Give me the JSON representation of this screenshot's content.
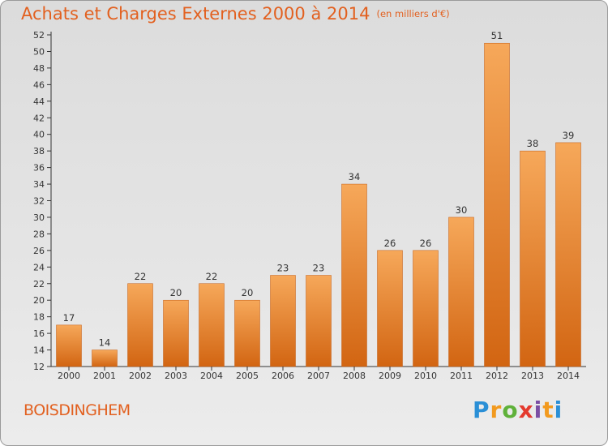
{
  "title": "Achats et Charges Externes 2000 à 2014",
  "subtitle": "(en milliers d'€)",
  "town": "BOISDINGHEM",
  "logo": {
    "letters": [
      "P",
      "r",
      "o",
      "x",
      "i",
      "t",
      "i"
    ],
    "colors": [
      "#2a8fd6",
      "#f29a1e",
      "#5fb13a",
      "#e43a2e",
      "#7b4ea3",
      "#f29a1e",
      "#2a8fd6"
    ]
  },
  "colors": {
    "bar_top": "#f6a85a",
    "bar_bottom": "#d26512",
    "title": "#e2601f"
  },
  "chart_data": {
    "type": "bar",
    "categories": [
      "2000",
      "2001",
      "2002",
      "2003",
      "2004",
      "2005",
      "2006",
      "2007",
      "2008",
      "2009",
      "2010",
      "2011",
      "2012",
      "2013",
      "2014"
    ],
    "values": [
      17,
      14,
      22,
      20,
      22,
      20,
      23,
      23,
      34,
      26,
      26,
      30,
      51,
      38,
      39
    ],
    "ylim": [
      12,
      52
    ],
    "yticks": [
      12,
      14,
      16,
      18,
      20,
      22,
      24,
      26,
      28,
      30,
      32,
      34,
      36,
      38,
      40,
      42,
      44,
      46,
      48,
      50,
      52
    ],
    "grid": false
  }
}
